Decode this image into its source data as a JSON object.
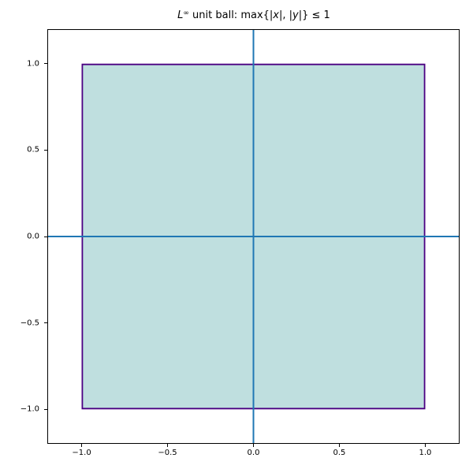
{
  "figure": {
    "background_color": "#ffffff",
    "frame_color": "#000000",
    "tick_color": "#000000",
    "text_color": "#000000"
  },
  "chart_data": {
    "type": "area",
    "title": "L^∞ unit ball: max{|x|, |y|} ≤ 1",
    "title_parts": [
      {
        "text": "L",
        "style": "italic"
      },
      {
        "text": "∞",
        "style": "sup"
      },
      {
        "text": " unit ball: max{|",
        "style": "normal"
      },
      {
        "text": "x",
        "style": "italic"
      },
      {
        "text": "|, |",
        "style": "normal"
      },
      {
        "text": "y",
        "style": "italic"
      },
      {
        "text": "|} ≤ 1",
        "style": "normal"
      }
    ],
    "xlabel": "",
    "ylabel": "",
    "xlim": [
      -1.2,
      1.2
    ],
    "ylim": [
      -1.2,
      1.2
    ],
    "grid": false,
    "legend": false,
    "x_ticks": {
      "values": [
        -1.0,
        -0.5,
        0.0,
        0.5,
        1.0
      ],
      "labels": [
        "−1.0",
        "−0.5",
        "0.0",
        "0.5",
        "1.0"
      ]
    },
    "y_ticks": {
      "values": [
        1.0,
        0.5,
        0.0,
        -0.5,
        -1.0
      ],
      "labels": [
        "1.0",
        "0.5",
        "0.0",
        "−0.5",
        "−1.0"
      ]
    },
    "region": {
      "name": "L-infinity unit ball",
      "vertices": [
        [
          -1,
          -1
        ],
        [
          1,
          -1
        ],
        [
          1,
          1
        ],
        [
          -1,
          1
        ]
      ],
      "fill_color": "#bfdfdf",
      "edge_color": "#4b0082",
      "edge_width": 1.8
    },
    "axis_lines": [
      {
        "orientation": "vertical",
        "at": 0,
        "color": "#1f77b4",
        "width": 2
      },
      {
        "orientation": "horizontal",
        "at": 0,
        "color": "#1f77b4",
        "width": 2
      }
    ]
  }
}
